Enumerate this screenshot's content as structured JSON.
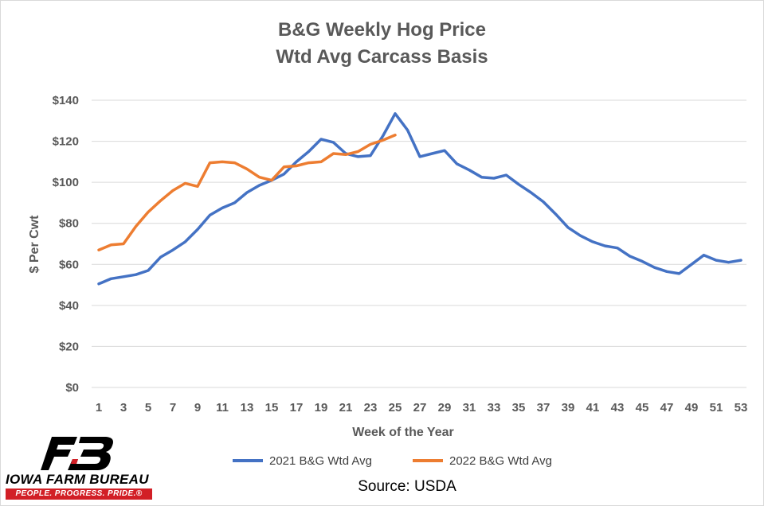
{
  "chart_data": {
    "type": "line",
    "title_line1": "B&G Weekly Hog Price",
    "title_line2": "Wtd Avg Carcass Basis",
    "xlabel": "Week of the Year",
    "ylabel": "$ Per Cwt",
    "xlim": [
      1,
      53
    ],
    "ylim": [
      0,
      140
    ],
    "y_ticks": [
      "$0",
      "$20",
      "$40",
      "$60",
      "$80",
      "$100",
      "$120",
      "$140"
    ],
    "x_ticks": [
      "1",
      "3",
      "5",
      "7",
      "9",
      "11",
      "13",
      "15",
      "17",
      "19",
      "21",
      "23",
      "25",
      "27",
      "29",
      "31",
      "33",
      "35",
      "37",
      "39",
      "41",
      "43",
      "45",
      "47",
      "49",
      "51",
      "53"
    ],
    "grid": true,
    "legend_position": "bottom",
    "series": [
      {
        "name": "2021 B&G Wtd Avg",
        "color": "#4472c4",
        "x": [
          1,
          2,
          3,
          4,
          5,
          6,
          7,
          8,
          9,
          10,
          11,
          12,
          13,
          14,
          15,
          16,
          17,
          18,
          19,
          20,
          21,
          22,
          23,
          24,
          25,
          26,
          27,
          28,
          29,
          30,
          31,
          32,
          33,
          34,
          35,
          36,
          37,
          38,
          39,
          40,
          41,
          42,
          43,
          44,
          45,
          46,
          47,
          48,
          49,
          50,
          51,
          52,
          53
        ],
        "values": [
          50.5,
          53,
          54,
          55,
          57,
          63.5,
          67,
          71,
          77,
          84,
          87.5,
          90,
          95,
          98.5,
          101,
          104,
          110,
          115,
          121,
          119.5,
          114,
          112.5,
          113,
          122.5,
          133.5,
          125.5,
          112.5,
          114,
          115.5,
          109,
          106,
          102.5,
          102,
          103.5,
          99,
          95,
          90.5,
          84.5,
          78,
          74,
          71,
          69,
          68,
          64,
          61.5,
          58.5,
          56.5,
          55.5,
          60,
          64.5,
          62,
          61,
          62
        ]
      },
      {
        "name": "2022 B&G Wtd Avg",
        "color": "#ed7d31",
        "x": [
          1,
          2,
          3,
          4,
          5,
          6,
          7,
          8,
          9,
          10,
          11,
          12,
          13,
          14,
          15,
          16,
          17,
          18,
          19,
          20,
          21,
          22,
          23,
          24,
          25
        ],
        "values": [
          67,
          69.5,
          70,
          78.5,
          85.5,
          91,
          96,
          99.5,
          98,
          109.5,
          110,
          109.5,
          106.5,
          102.5,
          101,
          107.5,
          108,
          109.5,
          110,
          114,
          113.5,
          115,
          118.5,
          120.5,
          123
        ]
      }
    ]
  },
  "source_text": "Source: USDA",
  "logo": {
    "name": "IOWA FARM BUREAU",
    "tagline": "PEOPLE. PROGRESS. PRIDE.®"
  }
}
